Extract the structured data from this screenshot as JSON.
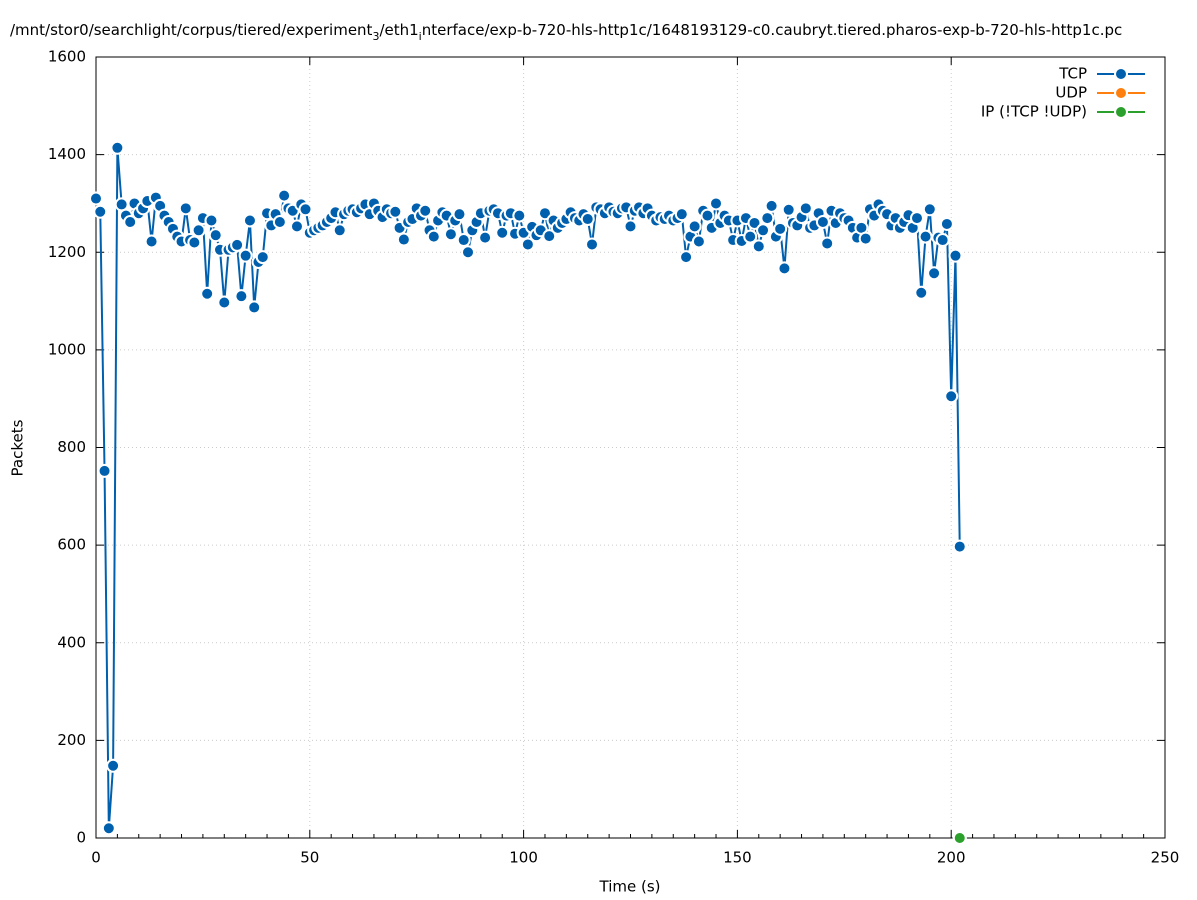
{
  "chart_data": {
    "type": "line",
    "title": [
      "/mnt/stor0/searchlight/corpus/tiered/experiment",
      "3",
      "/eth1",
      "i",
      "nterface/exp-b-720-hls-http1c/1648193129-c0.caubryt.tiered.pharos-exp-b-720-hls-http1c.pc"
    ],
    "xlabel": "Time (s)",
    "ylabel": "Packets",
    "xlim": [
      0,
      250
    ],
    "xticks": [
      0,
      50,
      100,
      150,
      200,
      250
    ],
    "ylim": [
      0,
      1600
    ],
    "yticks": [
      0,
      200,
      400,
      600,
      800,
      1000,
      1200,
      1400,
      1600
    ],
    "grid": true,
    "legend": "top-right",
    "series": [
      {
        "name": "TCP",
        "color": "#0060ad",
        "x": [
          0,
          1,
          2,
          3,
          4,
          5,
          6,
          7,
          8,
          9,
          10,
          11,
          12,
          13,
          14,
          15,
          16,
          17,
          18,
          19,
          20,
          21,
          22,
          23,
          24,
          25,
          26,
          27,
          28,
          29,
          30,
          31,
          32,
          33,
          34,
          35,
          36,
          37,
          38,
          39,
          40,
          41,
          42,
          43,
          44,
          45,
          46,
          47,
          48,
          49,
          50,
          51,
          52,
          53,
          54,
          55,
          56,
          57,
          58,
          59,
          60,
          61,
          62,
          63,
          64,
          65,
          66,
          67,
          68,
          69,
          70,
          71,
          72,
          73,
          74,
          75,
          76,
          77,
          78,
          79,
          80,
          81,
          82,
          83,
          84,
          85,
          86,
          87,
          88,
          89,
          90,
          91,
          92,
          93,
          94,
          95,
          96,
          97,
          98,
          99,
          100,
          101,
          102,
          103,
          104,
          105,
          106,
          107,
          108,
          109,
          110,
          111,
          112,
          113,
          114,
          115,
          116,
          117,
          118,
          119,
          120,
          121,
          122,
          123,
          124,
          125,
          126,
          127,
          128,
          129,
          130,
          131,
          132,
          133,
          134,
          135,
          136,
          137,
          138,
          139,
          140,
          141,
          142,
          143,
          144,
          145,
          146,
          147,
          148,
          149,
          150,
          151,
          152,
          153,
          154,
          155,
          156,
          157,
          158,
          159,
          160,
          161,
          162,
          163,
          164,
          165,
          166,
          167,
          168,
          169,
          170,
          171,
          172,
          173,
          174,
          175,
          176,
          177,
          178,
          179,
          180,
          181,
          182,
          183,
          184,
          185,
          186,
          187,
          188,
          189,
          190,
          191,
          192,
          193,
          194,
          195,
          196,
          197,
          198,
          199,
          200,
          201,
          202
        ],
        "values": [
          1310,
          1283,
          752,
          20,
          148,
          1414,
          1298,
          1275,
          1262,
          1300,
          1280,
          1290,
          1305,
          1222,
          1312,
          1295,
          1275,
          1262,
          1248,
          1232,
          1222,
          1290,
          1225,
          1220,
          1245,
          1270,
          1115,
          1265,
          1235,
          1205,
          1097,
          1205,
          1210,
          1215,
          1110,
          1193,
          1265,
          1087,
          1180,
          1190,
          1280,
          1255,
          1278,
          1262,
          1316,
          1290,
          1285,
          1253,
          1298,
          1288,
          1240,
          1245,
          1250,
          1255,
          1262,
          1270,
          1282,
          1245,
          1278,
          1285,
          1288,
          1282,
          1290,
          1298,
          1278,
          1300,
          1285,
          1272,
          1288,
          1280,
          1283,
          1250,
          1226,
          1262,
          1268,
          1290,
          1275,
          1285,
          1245,
          1232,
          1265,
          1282,
          1275,
          1237,
          1265,
          1278,
          1225,
          1200,
          1245,
          1262,
          1280,
          1230,
          1285,
          1288,
          1280,
          1240,
          1275,
          1280,
          1238,
          1275,
          1240,
          1216,
          1252,
          1235,
          1245,
          1280,
          1233,
          1265,
          1250,
          1260,
          1268,
          1282,
          1270,
          1265,
          1278,
          1268,
          1216,
          1292,
          1288,
          1280,
          1292,
          1283,
          1280,
          1290,
          1292,
          1253,
          1285,
          1292,
          1280,
          1290,
          1275,
          1265,
          1272,
          1268,
          1275,
          1265,
          1270,
          1278,
          1190,
          1232,
          1253,
          1222,
          1285,
          1275,
          1250,
          1300,
          1260,
          1275,
          1265,
          1225,
          1265,
          1223,
          1270,
          1232,
          1260,
          1212,
          1245,
          1270,
          1295,
          1232,
          1248,
          1167,
          1287,
          1260,
          1255,
          1272,
          1290,
          1250,
          1255,
          1280,
          1262,
          1218,
          1285,
          1260,
          1280,
          1270,
          1265,
          1250,
          1230,
          1250,
          1228,
          1288,
          1275,
          1298,
          1285,
          1278,
          1255,
          1270,
          1250,
          1262,
          1276,
          1250,
          1270,
          1117,
          1232,
          1288,
          1157,
          1230,
          1225,
          1258,
          905,
          1193,
          597
        ]
      },
      {
        "name": "UDP",
        "color": "#ff7f0e",
        "x": [
          202
        ],
        "values": [
          0
        ]
      },
      {
        "name": "IP (!TCP  !UDP)",
        "color": "#2ca02c",
        "x": [
          202
        ],
        "values": [
          0
        ]
      }
    ]
  }
}
